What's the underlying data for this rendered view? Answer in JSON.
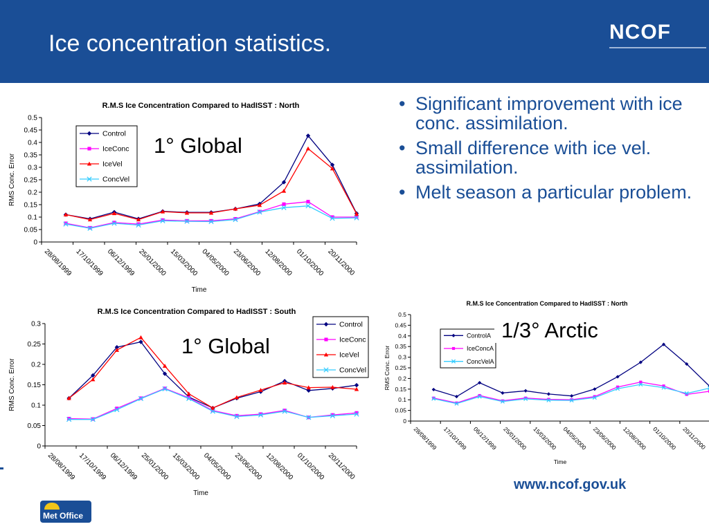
{
  "header": {
    "title": "Ice concentration statistics.",
    "logo": "NCOF"
  },
  "bullets": [
    "Significant improvement with ice conc. assimilation.",
    "Small difference with ice vel. assimilation.",
    "Melt season a particular problem."
  ],
  "labels": {
    "north_global": "1° Global",
    "south_global": "1° Global",
    "arctic": "1/3° Arctic"
  },
  "footer": {
    "url": "www.ncof.gov.uk",
    "met_office": "Met Office"
  },
  "chart_data": [
    {
      "id": "north-global",
      "type": "line",
      "title": "R.M.S Ice Concentration Compared to HadISST : North",
      "xlabel": "Time",
      "ylabel": "RMS Conc. Error",
      "ylim": [
        0,
        0.5
      ],
      "yticks": [
        "0",
        "0.05",
        "0.1",
        "0.15",
        "0.2",
        "0.25",
        "0.3",
        "0.35",
        "0.4",
        "0.45",
        "0.5"
      ],
      "xticks": [
        "28/08/1999",
        "17/10/1999",
        "06/12/1999",
        "25/01/2000",
        "15/03/2000",
        "04/05/2000",
        "23/06/2000",
        "12/08/2000",
        "01/10/2000",
        "20/11/2000"
      ],
      "legend_position": "top-left",
      "grid": false,
      "series": [
        {
          "name": "Control",
          "color": "#000080",
          "marker": "diamond",
          "values": [
            0.11,
            0.093,
            0.12,
            0.093,
            0.123,
            0.119,
            0.119,
            0.133,
            0.153,
            0.24,
            0.427,
            0.31,
            0.115
          ]
        },
        {
          "name": "IceConc",
          "color": "#ff00ff",
          "marker": "square",
          "values": [
            0.075,
            0.057,
            0.078,
            0.072,
            0.088,
            0.085,
            0.085,
            0.093,
            0.122,
            0.152,
            0.162,
            0.1,
            0.1
          ]
        },
        {
          "name": "IceVel",
          "color": "#ff0000",
          "marker": "triangle",
          "values": [
            0.11,
            0.09,
            0.115,
            0.09,
            0.122,
            0.117,
            0.117,
            0.133,
            0.148,
            0.205,
            0.375,
            0.295,
            0.113
          ]
        },
        {
          "name": "ConcVel",
          "color": "#33ccff",
          "marker": "x",
          "values": [
            0.072,
            0.055,
            0.075,
            0.068,
            0.085,
            0.083,
            0.082,
            0.09,
            0.12,
            0.138,
            0.145,
            0.095,
            0.097
          ]
        }
      ]
    },
    {
      "id": "south-global",
      "type": "line",
      "title": "R.M.S Ice Concentration Compared to HadISST : South",
      "xlabel": "Time",
      "ylabel": "RMS Conc. Error",
      "ylim": [
        0,
        0.3
      ],
      "yticks": [
        "0",
        "0.05",
        "0.1",
        "0.15",
        "0.2",
        "0.25",
        "0.3"
      ],
      "xticks": [
        "28/08/1999",
        "17/10/1999",
        "06/12/1999",
        "25/01/2000",
        "15/03/2000",
        "04/05/2000",
        "23/06/2000",
        "12/08/2000",
        "01/10/2000",
        "20/11/2000"
      ],
      "legend_position": "top-right",
      "grid": false,
      "series": [
        {
          "name": "Control",
          "color": "#000080",
          "marker": "diamond",
          "values": [
            0.117,
            0.173,
            0.242,
            0.255,
            0.177,
            0.12,
            0.093,
            0.117,
            0.133,
            0.159,
            0.136,
            0.141,
            0.149
          ]
        },
        {
          "name": "IceConc",
          "color": "#ff00ff",
          "marker": "square",
          "values": [
            0.067,
            0.066,
            0.092,
            0.117,
            0.141,
            0.118,
            0.087,
            0.074,
            0.078,
            0.087,
            0.07,
            0.076,
            0.081
          ]
        },
        {
          "name": "IceVel",
          "color": "#ff0000",
          "marker": "triangle",
          "values": [
            0.117,
            0.163,
            0.235,
            0.266,
            0.196,
            0.128,
            0.093,
            0.119,
            0.137,
            0.155,
            0.143,
            0.144,
            0.139
          ]
        },
        {
          "name": "ConcVel",
          "color": "#33ccff",
          "marker": "x",
          "values": [
            0.065,
            0.065,
            0.089,
            0.116,
            0.14,
            0.116,
            0.085,
            0.072,
            0.076,
            0.085,
            0.07,
            0.074,
            0.078
          ]
        }
      ]
    },
    {
      "id": "arctic",
      "type": "line",
      "title": "R.M.S Ice Concentration Compared to HadISST : North",
      "xlabel": "Time",
      "ylabel": "RMS Conc. Error",
      "ylim": [
        0,
        0.5
      ],
      "yticks": [
        "0",
        "0.05",
        "0.1",
        "0.15",
        "0.2",
        "0.25",
        "0.3",
        "0.35",
        "0.4",
        "0.45",
        "0.5"
      ],
      "xticks": [
        "28/08/1999",
        "17/10/1999",
        "06/12/1999",
        "25/01/2000",
        "15/03/2000",
        "04/05/2000",
        "23/06/2000",
        "12/08/2000",
        "01/10/2000",
        "20/11/2000"
      ],
      "legend_position": "top-left",
      "grid": false,
      "series": [
        {
          "name": "ControlA",
          "color": "#000080",
          "marker": "diamond",
          "values": [
            0.148,
            0.115,
            0.18,
            0.132,
            0.142,
            0.127,
            0.118,
            0.15,
            0.208,
            0.276,
            0.36,
            0.268,
            0.163
          ]
        },
        {
          "name": "IceConcA",
          "color": "#ff00ff",
          "marker": "square",
          "values": [
            0.108,
            0.085,
            0.12,
            0.095,
            0.108,
            0.102,
            0.1,
            0.115,
            0.16,
            0.183,
            0.165,
            0.125,
            0.14
          ]
        },
        {
          "name": "ConcVelA",
          "color": "#33ccff",
          "marker": "x",
          "values": [
            0.105,
            0.082,
            0.115,
            0.092,
            0.104,
            0.098,
            0.097,
            0.11,
            0.152,
            0.172,
            0.157,
            0.13,
            0.155
          ]
        }
      ]
    }
  ]
}
